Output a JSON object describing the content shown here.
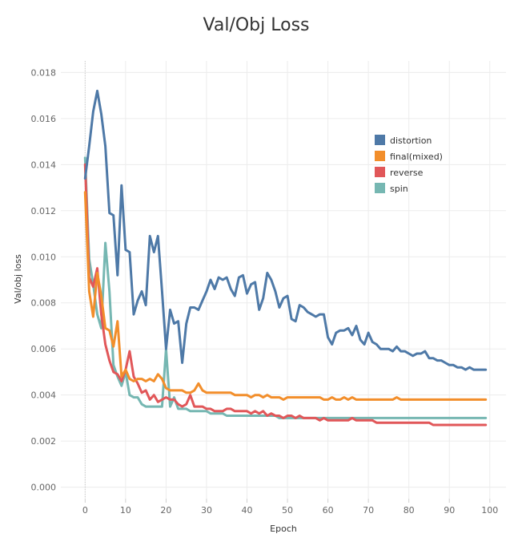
{
  "chart_data": {
    "type": "line",
    "title": "Val/Obj Loss",
    "xlabel": "Epoch",
    "ylabel": "Val/obj loss",
    "xlim": [
      -6,
      104
    ],
    "ylim": [
      -0.0005,
      0.0185
    ],
    "xticks": [
      "0",
      "10",
      "20",
      "30",
      "40",
      "50",
      "60",
      "70",
      "80",
      "90",
      "100"
    ],
    "yticks": [
      "0.000",
      "0.002",
      "0.004",
      "0.006",
      "0.008",
      "0.010",
      "0.012",
      "0.014",
      "0.016",
      "0.018"
    ],
    "grid": true,
    "legend_position": "top-right",
    "series": [
      {
        "name": "distortion",
        "color": "#4e79a7",
        "x": [
          0,
          1,
          2,
          3,
          4,
          5,
          6,
          7,
          8,
          9,
          10,
          11,
          12,
          13,
          14,
          15,
          16,
          17,
          18,
          19,
          20,
          21,
          22,
          23,
          24,
          25,
          26,
          27,
          28,
          29,
          30,
          31,
          32,
          33,
          34,
          35,
          36,
          37,
          38,
          39,
          40,
          41,
          42,
          43,
          44,
          45,
          46,
          47,
          48,
          49,
          50,
          51,
          52,
          53,
          54,
          55,
          56,
          57,
          58,
          59,
          60,
          61,
          62,
          63,
          64,
          65,
          66,
          67,
          68,
          69,
          70,
          71,
          72,
          73,
          74,
          75,
          76,
          77,
          78,
          79,
          80,
          81,
          82,
          83,
          84,
          85,
          86,
          87,
          88,
          89,
          90,
          91,
          92,
          93,
          94,
          95,
          96,
          97,
          98,
          99
        ],
        "y": [
          0.0134,
          0.0148,
          0.0163,
          0.0172,
          0.0162,
          0.0148,
          0.0119,
          0.0118,
          0.0092,
          0.0131,
          0.0103,
          0.0102,
          0.0075,
          0.0081,
          0.0085,
          0.0079,
          0.0109,
          0.0102,
          0.0109,
          0.0085,
          0.006,
          0.0077,
          0.0071,
          0.0072,
          0.0054,
          0.0071,
          0.0078,
          0.0078,
          0.0077,
          0.0081,
          0.0085,
          0.009,
          0.0086,
          0.0091,
          0.009,
          0.0091,
          0.0086,
          0.0083,
          0.0091,
          0.0092,
          0.0084,
          0.0088,
          0.0089,
          0.0077,
          0.0082,
          0.0093,
          0.009,
          0.0085,
          0.0078,
          0.0082,
          0.0083,
          0.0073,
          0.0072,
          0.0079,
          0.0078,
          0.0076,
          0.0075,
          0.0074,
          0.0075,
          0.0075,
          0.0065,
          0.0062,
          0.0067,
          0.0068,
          0.0068,
          0.0069,
          0.0066,
          0.007,
          0.0064,
          0.0062,
          0.0067,
          0.0063,
          0.0062,
          0.006,
          0.006,
          0.006,
          0.0059,
          0.0061,
          0.0059,
          0.0059,
          0.0058,
          0.0057,
          0.0058,
          0.0058,
          0.0059,
          0.0056,
          0.0056,
          0.0055,
          0.0055,
          0.0054,
          0.0053,
          0.0053,
          0.0052,
          0.0052,
          0.0051,
          0.0052,
          0.0051,
          0.0051,
          0.0051,
          0.0051
        ]
      },
      {
        "name": "final(mixed)",
        "color": "#f28e2b",
        "x": [
          0,
          1,
          2,
          3,
          4,
          5,
          6,
          7,
          8,
          9,
          10,
          11,
          12,
          13,
          14,
          15,
          16,
          17,
          18,
          19,
          20,
          21,
          22,
          23,
          24,
          25,
          26,
          27,
          28,
          29,
          30,
          31,
          32,
          33,
          34,
          35,
          36,
          37,
          38,
          39,
          40,
          41,
          42,
          43,
          44,
          45,
          46,
          47,
          48,
          49,
          50,
          51,
          52,
          53,
          54,
          55,
          56,
          57,
          58,
          59,
          60,
          61,
          62,
          63,
          64,
          65,
          66,
          67,
          68,
          69,
          70,
          71,
          72,
          73,
          74,
          75,
          76,
          77,
          78,
          79,
          80,
          81,
          82,
          83,
          84,
          85,
          86,
          87,
          88,
          89,
          90,
          91,
          92,
          93,
          94,
          95,
          96,
          97,
          98,
          99
        ],
        "y": [
          0.0128,
          0.0085,
          0.0074,
          0.0093,
          0.0083,
          0.0069,
          0.0068,
          0.0061,
          0.0072,
          0.0048,
          0.0051,
          0.0047,
          0.0046,
          0.0047,
          0.0047,
          0.0046,
          0.0047,
          0.0046,
          0.0049,
          0.0047,
          0.0043,
          0.0042,
          0.0042,
          0.0042,
          0.0042,
          0.0041,
          0.0041,
          0.0042,
          0.0045,
          0.0042,
          0.0041,
          0.0041,
          0.0041,
          0.0041,
          0.0041,
          0.0041,
          0.0041,
          0.004,
          0.004,
          0.004,
          0.004,
          0.0039,
          0.004,
          0.004,
          0.0039,
          0.004,
          0.0039,
          0.0039,
          0.0039,
          0.0038,
          0.0039,
          0.0039,
          0.0039,
          0.0039,
          0.0039,
          0.0039,
          0.0039,
          0.0039,
          0.0039,
          0.0038,
          0.0038,
          0.0039,
          0.0038,
          0.0038,
          0.0039,
          0.0038,
          0.0039,
          0.0038,
          0.0038,
          0.0038,
          0.0038,
          0.0038,
          0.0038,
          0.0038,
          0.0038,
          0.0038,
          0.0038,
          0.0039,
          0.0038,
          0.0038,
          0.0038,
          0.0038,
          0.0038,
          0.0038,
          0.0038,
          0.0038,
          0.0038,
          0.0038,
          0.0038,
          0.0038,
          0.0038,
          0.0038,
          0.0038,
          0.0038,
          0.0038,
          0.0038,
          0.0038,
          0.0038,
          0.0038,
          0.0038
        ]
      },
      {
        "name": "reverse",
        "color": "#e15759",
        "x": [
          0,
          1,
          2,
          3,
          4,
          5,
          6,
          7,
          8,
          9,
          10,
          11,
          12,
          13,
          14,
          15,
          16,
          17,
          18,
          19,
          20,
          21,
          22,
          23,
          24,
          25,
          26,
          27,
          28,
          29,
          30,
          31,
          32,
          33,
          34,
          35,
          36,
          37,
          38,
          39,
          40,
          41,
          42,
          43,
          44,
          45,
          46,
          47,
          48,
          49,
          50,
          51,
          52,
          53,
          54,
          55,
          56,
          57,
          58,
          59,
          60,
          61,
          62,
          63,
          64,
          65,
          66,
          67,
          68,
          69,
          70,
          71,
          72,
          73,
          74,
          75,
          76,
          77,
          78,
          79,
          80,
          81,
          82,
          83,
          84,
          85,
          86,
          87,
          88,
          89,
          90,
          91,
          92,
          93,
          94,
          95,
          96,
          97,
          98,
          99
        ],
        "y": [
          0.014,
          0.0091,
          0.0087,
          0.0095,
          0.0075,
          0.0062,
          0.0055,
          0.005,
          0.0049,
          0.0046,
          0.0051,
          0.0059,
          0.0048,
          0.0045,
          0.0041,
          0.0042,
          0.0038,
          0.004,
          0.0037,
          0.0038,
          0.0039,
          0.0038,
          0.0038,
          0.0036,
          0.0035,
          0.0036,
          0.004,
          0.0035,
          0.0035,
          0.0035,
          0.0034,
          0.0034,
          0.0033,
          0.0033,
          0.0033,
          0.0034,
          0.0034,
          0.0033,
          0.0033,
          0.0033,
          0.0033,
          0.0032,
          0.0033,
          0.0032,
          0.0033,
          0.0031,
          0.0032,
          0.0031,
          0.0031,
          0.003,
          0.0031,
          0.0031,
          0.003,
          0.0031,
          0.003,
          0.003,
          0.003,
          0.003,
          0.0029,
          0.003,
          0.0029,
          0.0029,
          0.0029,
          0.0029,
          0.0029,
          0.0029,
          0.003,
          0.0029,
          0.0029,
          0.0029,
          0.0029,
          0.0029,
          0.0028,
          0.0028,
          0.0028,
          0.0028,
          0.0028,
          0.0028,
          0.0028,
          0.0028,
          0.0028,
          0.0028,
          0.0028,
          0.0028,
          0.0028,
          0.0028,
          0.0027,
          0.0027,
          0.0027,
          0.0027,
          0.0027,
          0.0027,
          0.0027,
          0.0027,
          0.0027,
          0.0027,
          0.0027,
          0.0027,
          0.0027,
          0.0027
        ]
      },
      {
        "name": "spin",
        "color": "#76b7b2",
        "x": [
          0,
          1,
          2,
          3,
          4,
          5,
          6,
          7,
          8,
          9,
          10,
          11,
          12,
          13,
          14,
          15,
          16,
          17,
          18,
          19,
          20,
          21,
          22,
          23,
          24,
          25,
          26,
          27,
          28,
          29,
          30,
          31,
          32,
          33,
          34,
          35,
          36,
          37,
          38,
          39,
          40,
          41,
          42,
          43,
          44,
          45,
          46,
          47,
          48,
          49,
          50,
          51,
          52,
          53,
          54,
          55,
          56,
          57,
          58,
          59,
          60,
          61,
          62,
          63,
          64,
          65,
          66,
          67,
          68,
          69,
          70,
          71,
          72,
          73,
          74,
          75,
          76,
          77,
          78,
          79,
          80,
          81,
          82,
          83,
          84,
          85,
          86,
          87,
          88,
          89,
          90,
          91,
          92,
          93,
          94,
          95,
          96,
          97,
          98,
          99
        ],
        "y": [
          0.0143,
          0.0099,
          0.0088,
          0.0075,
          0.0069,
          0.0106,
          0.0085,
          0.0053,
          0.0048,
          0.0044,
          0.005,
          0.004,
          0.0039,
          0.0039,
          0.0036,
          0.0035,
          0.0035,
          0.0035,
          0.0035,
          0.0035,
          0.006,
          0.0035,
          0.0039,
          0.0034,
          0.0034,
          0.0034,
          0.0033,
          0.0033,
          0.0033,
          0.0033,
          0.0033,
          0.0032,
          0.0032,
          0.0032,
          0.0032,
          0.0031,
          0.0031,
          0.0031,
          0.0031,
          0.0031,
          0.0031,
          0.0031,
          0.0031,
          0.0031,
          0.0031,
          0.0031,
          0.0031,
          0.0031,
          0.003,
          0.003,
          0.003,
          0.003,
          0.003,
          0.003,
          0.003,
          0.003,
          0.003,
          0.003,
          0.003,
          0.003,
          0.003,
          0.003,
          0.003,
          0.003,
          0.003,
          0.003,
          0.003,
          0.003,
          0.003,
          0.003,
          0.003,
          0.003,
          0.003,
          0.003,
          0.003,
          0.003,
          0.003,
          0.003,
          0.003,
          0.003,
          0.003,
          0.003,
          0.003,
          0.003,
          0.003,
          0.003,
          0.003,
          0.003,
          0.003,
          0.003,
          0.003,
          0.003,
          0.003,
          0.003,
          0.003,
          0.003,
          0.003,
          0.003,
          0.003,
          0.003
        ]
      }
    ]
  }
}
